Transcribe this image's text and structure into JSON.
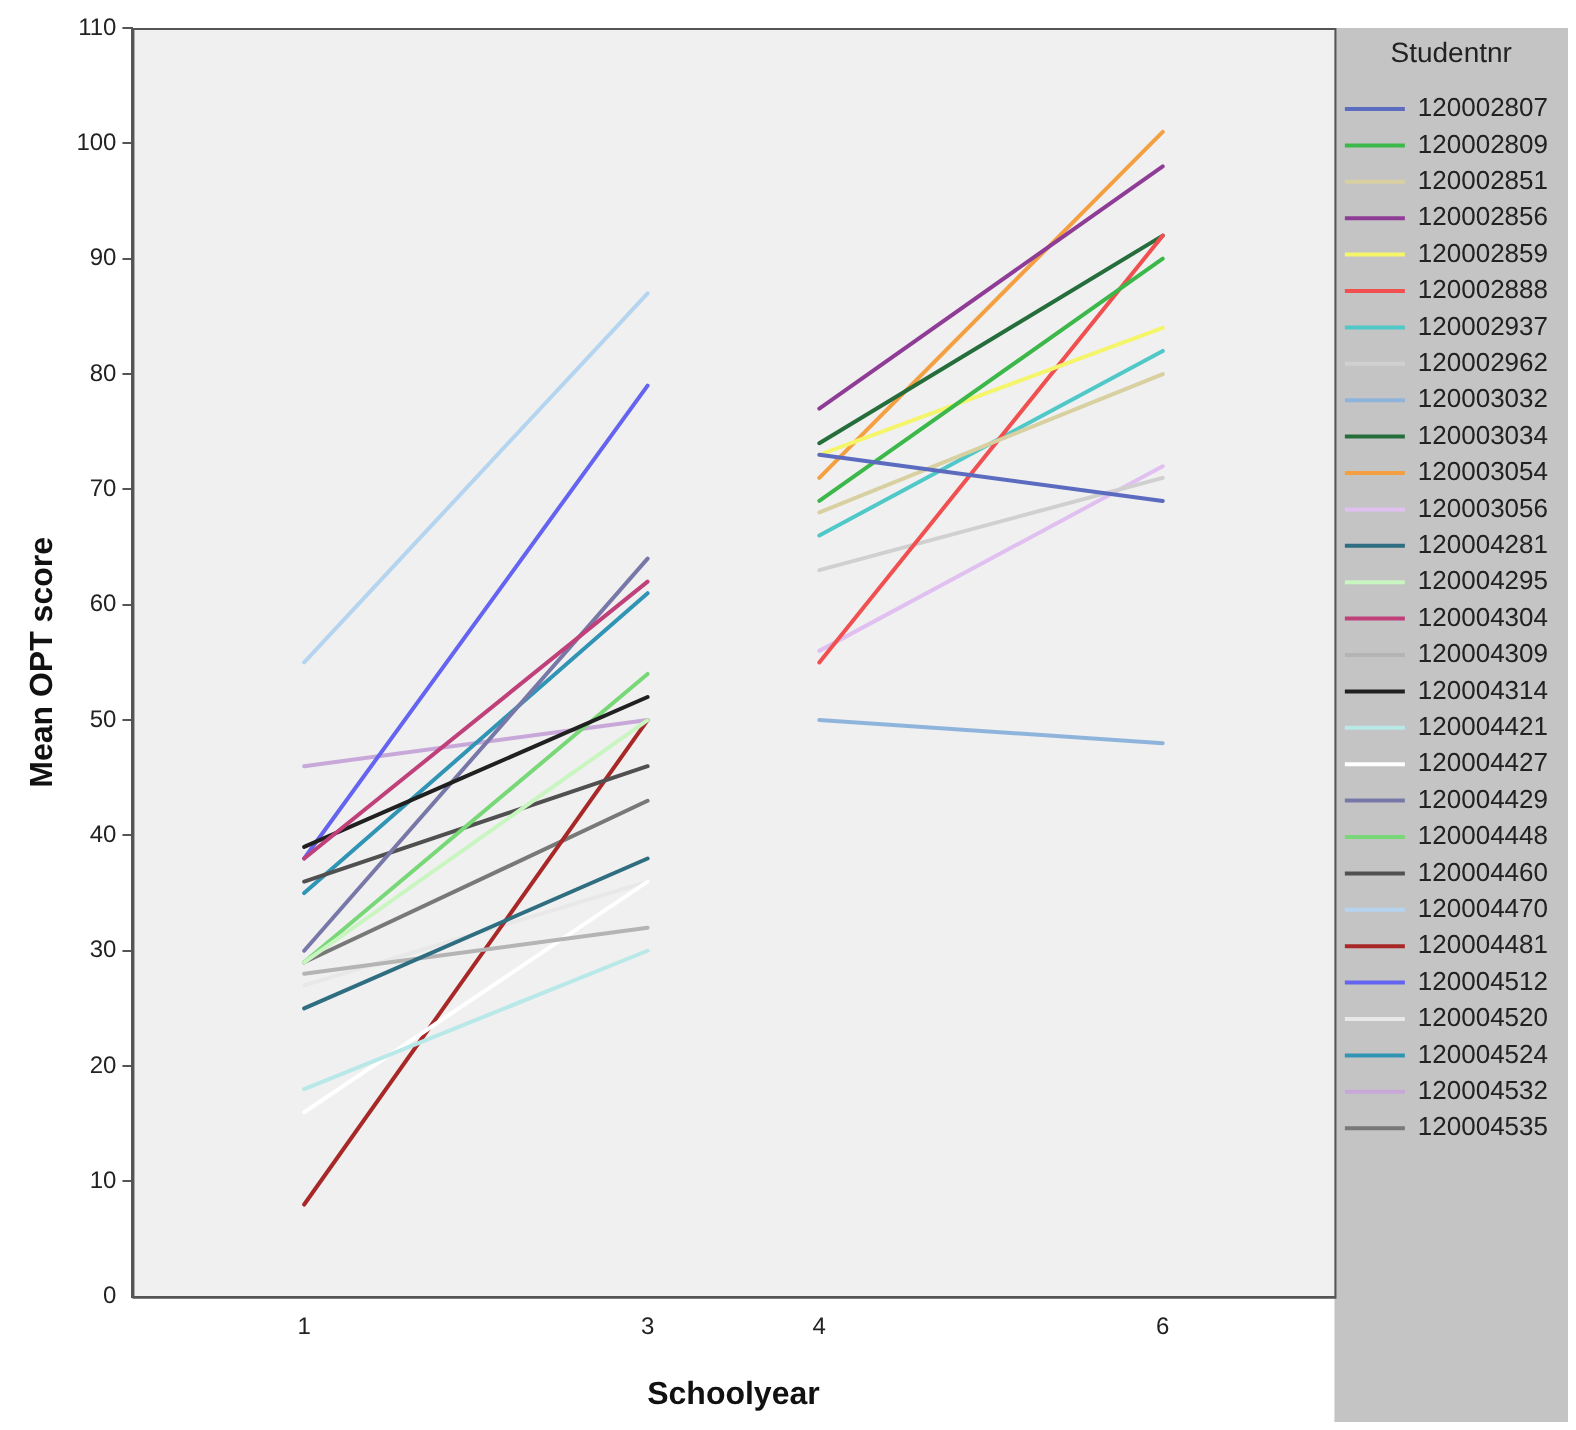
{
  "chart_data": {
    "type": "line",
    "xlabel": "Schoolyear",
    "ylabel": "Mean OPT score",
    "legend_title": "Studentnr",
    "legend": "right",
    "grid": false,
    "marker": "none",
    "line_style": "solid",
    "x": [
      1,
      3,
      4,
      6
    ],
    "xlim": [
      0,
      7
    ],
    "xticks": [
      1,
      3,
      4,
      6
    ],
    "ylim": [
      0,
      110
    ],
    "yticks": [
      0,
      10,
      20,
      30,
      40,
      50,
      60,
      70,
      80,
      90,
      100,
      110
    ],
    "series": [
      {
        "name": "120002807",
        "color": "#5b6bbf",
        "values": [
          null,
          null,
          73,
          69
        ]
      },
      {
        "name": "120002809",
        "color": "#3cb84a",
        "values": [
          null,
          null,
          69,
          90
        ]
      },
      {
        "name": "120002851",
        "color": "#d8d0a0",
        "values": [
          null,
          null,
          68,
          80
        ]
      },
      {
        "name": "120002856",
        "color": "#8e3c96",
        "values": [
          null,
          null,
          77,
          98
        ]
      },
      {
        "name": "120002859",
        "color": "#f5f56a",
        "values": [
          null,
          null,
          73,
          84
        ]
      },
      {
        "name": "120002888",
        "color": "#f05050",
        "values": [
          null,
          null,
          55,
          92
        ]
      },
      {
        "name": "120002937",
        "color": "#50c8c8",
        "values": [
          null,
          null,
          66,
          82
        ]
      },
      {
        "name": "120002962",
        "color": "#d0d0d0",
        "values": [
          null,
          null,
          63,
          71
        ]
      },
      {
        "name": "120003032",
        "color": "#8fb4dc",
        "values": [
          null,
          null,
          50,
          48
        ]
      },
      {
        "name": "120003034",
        "color": "#256e3c",
        "values": [
          null,
          null,
          74,
          92
        ]
      },
      {
        "name": "120003054",
        "color": "#f5a040",
        "values": [
          null,
          null,
          71,
          101
        ]
      },
      {
        "name": "120003056",
        "color": "#e0c0f0",
        "values": [
          null,
          null,
          56,
          72
        ]
      },
      {
        "name": "120004281",
        "color": "#2e6e80",
        "values": [
          25,
          38,
          null,
          null
        ]
      },
      {
        "name": "120004295",
        "color": "#c8f5c0",
        "values": [
          29,
          50,
          null,
          null
        ]
      },
      {
        "name": "120004304",
        "color": "#c0407a",
        "values": [
          38,
          62,
          null,
          null
        ]
      },
      {
        "name": "120004309",
        "color": "#b4b4b4",
        "values": [
          28,
          32,
          null,
          null
        ]
      },
      {
        "name": "120004314",
        "color": "#202020",
        "values": [
          39,
          52,
          null,
          null
        ]
      },
      {
        "name": "120004421",
        "color": "#b8e8e8",
        "values": [
          18,
          30,
          null,
          null
        ]
      },
      {
        "name": "120004427",
        "color": "#ffffff",
        "values": [
          16,
          36,
          null,
          null
        ]
      },
      {
        "name": "120004429",
        "color": "#7878a8",
        "values": [
          30,
          64,
          null,
          null
        ]
      },
      {
        "name": "120004448",
        "color": "#78d878",
        "values": [
          29,
          54,
          null,
          null
        ]
      },
      {
        "name": "120004460",
        "color": "#505050",
        "values": [
          36,
          46,
          null,
          null
        ]
      },
      {
        "name": "120004470",
        "color": "#b4d4f0",
        "values": [
          55,
          87,
          null,
          null
        ]
      },
      {
        "name": "120004481",
        "color": "#a82828",
        "values": [
          8,
          50,
          null,
          null
        ]
      },
      {
        "name": "120004512",
        "color": "#6464f0",
        "values": [
          38,
          79,
          null,
          null
        ]
      },
      {
        "name": "120004520",
        "color": "#e8e8e8",
        "values": [
          27,
          36,
          null,
          null
        ]
      },
      {
        "name": "120004524",
        "color": "#3094b4",
        "values": [
          35,
          61,
          null,
          null
        ]
      },
      {
        "name": "120004532",
        "color": "#c8a8d8",
        "values": [
          46,
          50,
          null,
          null
        ]
      },
      {
        "name": "120004535",
        "color": "#787878",
        "values": [
          29,
          43,
          null,
          null
        ]
      }
    ]
  }
}
